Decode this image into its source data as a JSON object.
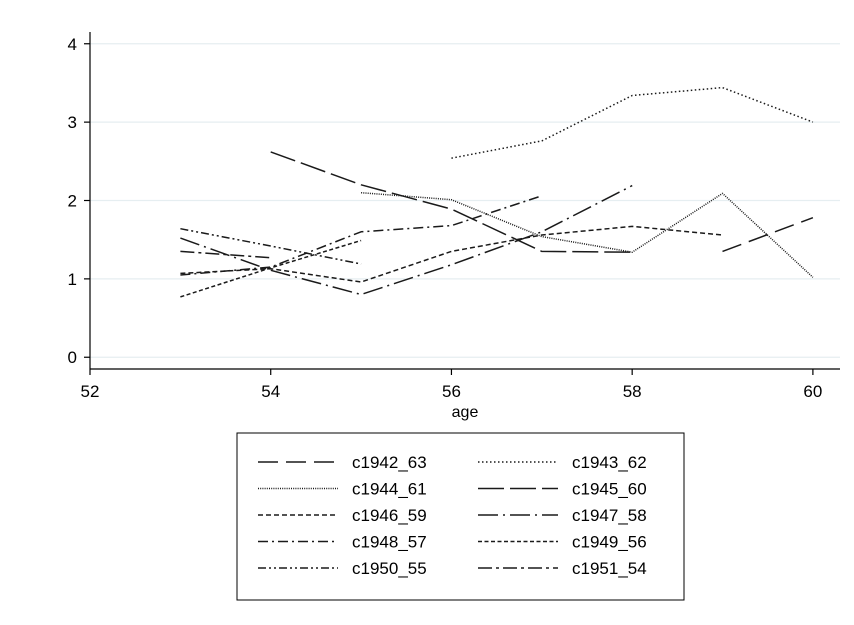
{
  "chart_data": {
    "type": "line",
    "title": "",
    "xlabel": "age",
    "ylabel": "",
    "xlim": [
      52,
      60.3
    ],
    "ylim": [
      -0.15,
      4.15
    ],
    "xticks": [
      52,
      54,
      56,
      58,
      60
    ],
    "yticks": [
      0,
      1,
      2,
      3,
      4
    ],
    "grid": true,
    "legend_position": "bottom",
    "series": [
      {
        "name": "c1942_63",
        "dash": "dash-long",
        "x": [
          59,
          60
        ],
        "y": [
          1.35,
          1.78
        ]
      },
      {
        "name": "c1943_62",
        "dash": "dot",
        "x": [
          56,
          57,
          58,
          59,
          60
        ],
        "y": [
          2.54,
          2.76,
          3.34,
          3.44,
          3.0
        ]
      },
      {
        "name": "c1944_61",
        "dash": "dot-dense",
        "x": [
          55,
          56,
          57,
          58,
          59,
          60
        ],
        "y": [
          2.1,
          2.01,
          1.54,
          1.34,
          2.09,
          1.02
        ]
      },
      {
        "name": "c1945_60",
        "dash": "dash-xlong",
        "x": [
          54,
          55,
          56,
          57,
          58
        ],
        "y": [
          2.62,
          2.2,
          1.89,
          1.35,
          1.34
        ]
      },
      {
        "name": "c1946_59",
        "dash": "dash-short",
        "x": [
          53,
          54,
          55,
          56,
          57,
          58,
          59
        ],
        "y": [
          1.07,
          1.13,
          0.96,
          1.35,
          1.56,
          1.67,
          1.56
        ]
      },
      {
        "name": "c1947_58",
        "dash": "dash-dot-long",
        "x": [
          53,
          54,
          55,
          56,
          57,
          58
        ],
        "y": [
          1.52,
          1.11,
          0.8,
          1.18,
          1.6,
          2.19
        ]
      },
      {
        "name": "c1948_57",
        "dash": "dash-dot",
        "x": [
          53,
          54,
          55,
          56,
          57
        ],
        "y": [
          1.05,
          1.15,
          1.6,
          1.68,
          2.06
        ]
      },
      {
        "name": "c1949_56",
        "dash": "dash-fine",
        "x": [
          53,
          54,
          55
        ],
        "y": [
          0.77,
          1.14,
          1.49
        ]
      },
      {
        "name": "c1950_55",
        "dash": "dash-dot-dot",
        "x": [
          53,
          54,
          55
        ],
        "y": [
          1.64,
          1.42,
          1.19
        ]
      },
      {
        "name": "c1951_54",
        "dash": "dash-dot-long2",
        "x": [
          53,
          54
        ],
        "y": [
          1.35,
          1.27
        ]
      }
    ]
  }
}
